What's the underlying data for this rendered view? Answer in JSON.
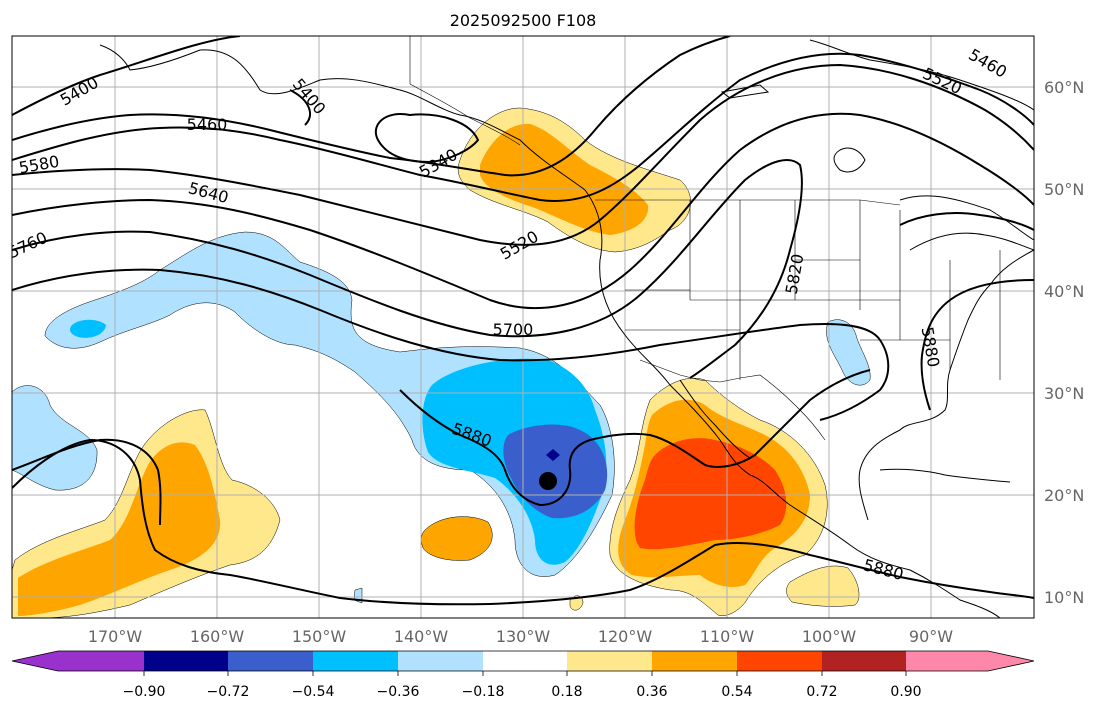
{
  "map": {
    "title": "2025092500 F108",
    "projection": "Plate Carree",
    "extent": {
      "lon_min": -180,
      "lon_max": -80,
      "lat_min": 8,
      "lat_max": 65
    },
    "lat_ticks": [
      "60°N",
      "50°N",
      "40°N",
      "30°N",
      "20°N",
      "10°N"
    ],
    "lon_ticks": [
      "170°W",
      "160°W",
      "150°W",
      "140°W",
      "130°W",
      "120°W",
      "110°W",
      "100°W",
      "90°W"
    ],
    "contour_labels": [
      "5400",
      "5400",
      "5460",
      "5340",
      "5520",
      "5460",
      "5580",
      "5640",
      "5520",
      "5760",
      "5820",
      "5700",
      "5880",
      "5880",
      "5880"
    ],
    "storm_marker": "black-dot",
    "center_marker": "navy-diamond"
  },
  "colorbar": {
    "ticks": [
      "−0.90",
      "−0.72",
      "−0.54",
      "−0.36",
      "−0.18",
      "0.18",
      "0.36",
      "0.54",
      "0.72",
      "0.90"
    ],
    "colors": [
      "#9932cc",
      "#00008b",
      "#3a5fcd",
      "#00bfff",
      "#b0e2ff",
      "#ffffff",
      "#ffe88c",
      "#ffa500",
      "#ff4500",
      "#b22222",
      "#ff88aa"
    ]
  }
}
